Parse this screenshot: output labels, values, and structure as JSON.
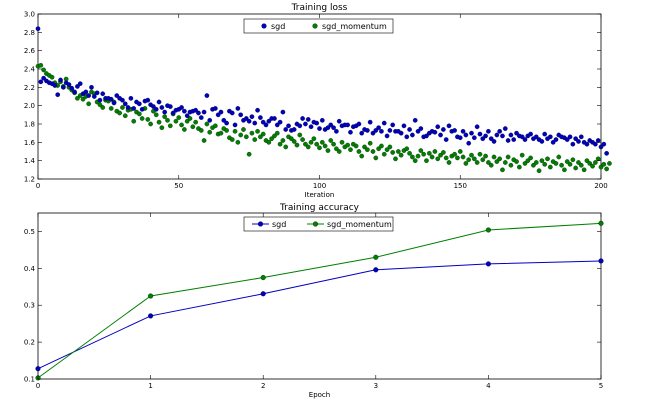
{
  "chart_data": [
    {
      "type": "scatter",
      "title": "Training loss",
      "xlabel": "Iteration",
      "ylabel": "",
      "xlim": [
        0,
        200
      ],
      "ylim": [
        1.2,
        3.0
      ],
      "xticks": [
        "0",
        "50",
        "100",
        "150",
        "200"
      ],
      "yticks": [
        "1.2",
        "1.4",
        "1.6",
        "1.8",
        "2.0",
        "2.2",
        "2.4",
        "2.6",
        "2.8",
        "3.0"
      ],
      "legend": "top-center",
      "grid": false,
      "series": [
        {
          "name": "sgd",
          "color": "#0000bf",
          "y": [
            2.84,
            2.26,
            2.3,
            2.27,
            2.25,
            2.24,
            2.22,
            2.12,
            2.28,
            2.2,
            2.25,
            2.23,
            2.19,
            2.15,
            2.21,
            2.24,
            2.13,
            2.15,
            2.11,
            2.2,
            2.1,
            2.14,
            2.06,
            2.13,
            2.08,
            2.08,
            2.07,
            2.03,
            2.11,
            2.08,
            2.06,
            2.02,
            1.98,
            2.08,
            1.97,
            2.04,
            2.02,
            1.96,
            2.05,
            2.06,
            2.01,
            1.99,
            1.96,
            2.04,
            1.98,
            1.93,
            2.0,
            1.99,
            1.92,
            1.95,
            1.96,
            1.98,
            1.94,
            1.89,
            1.93,
            1.94,
            1.95,
            1.92,
            1.87,
            1.93,
            2.11,
            1.84,
            1.96,
            1.97,
            1.9,
            1.93,
            1.84,
            1.81,
            1.94,
            1.92,
            1.79,
            1.97,
            1.9,
            1.84,
            1.86,
            1.83,
            1.88,
            1.81,
            1.95,
            1.87,
            1.82,
            1.79,
            1.83,
            1.86,
            1.86,
            1.79,
            1.82,
            1.93,
            1.74,
            1.78,
            1.73,
            1.74,
            1.8,
            1.78,
            1.86,
            1.8,
            1.85,
            1.77,
            1.82,
            1.81,
            1.75,
            1.84,
            1.74,
            1.76,
            1.79,
            1.76,
            1.72,
            1.83,
            1.78,
            1.79,
            1.79,
            1.71,
            1.77,
            1.78,
            1.8,
            1.7,
            1.74,
            1.73,
            1.82,
            1.7,
            1.73,
            1.76,
            1.72,
            1.81,
            1.67,
            1.73,
            1.79,
            1.72,
            1.72,
            1.7,
            1.78,
            1.66,
            1.74,
            1.68,
            1.84,
            1.72,
            1.75,
            1.66,
            1.67,
            1.7,
            1.72,
            1.71,
            1.77,
            1.68,
            1.74,
            1.63,
            1.78,
            1.72,
            1.73,
            1.66,
            1.65,
            1.72,
            1.68,
            1.59,
            1.7,
            1.65,
            1.77,
            1.69,
            1.64,
            1.67,
            1.72,
            1.64,
            1.61,
            1.68,
            1.72,
            1.67,
            1.75,
            1.62,
            1.68,
            1.63,
            1.7,
            1.67,
            1.66,
            1.63,
            1.67,
            1.69,
            1.64,
            1.66,
            1.63,
            1.61,
            1.69,
            1.64,
            1.66,
            1.6,
            1.63,
            1.68,
            1.66,
            1.65,
            1.63,
            1.66,
            1.58,
            1.64,
            1.61,
            1.66,
            1.6,
            1.58,
            1.62,
            1.6,
            1.58,
            1.62,
            1.55,
            1.58,
            1.48
          ]
        },
        {
          "name": "sgd_momentum",
          "color": "#007f00",
          "y": [
            2.43,
            2.44,
            2.39,
            2.35,
            2.33,
            2.31,
            2.25,
            2.22,
            2.26,
            2.21,
            2.29,
            2.2,
            2.17,
            2.14,
            2.08,
            2.11,
            2.07,
            2.1,
            2.02,
            2.15,
            2.13,
            2.04,
            2.01,
            1.98,
            2.06,
            2.05,
            1.97,
            2.04,
            1.94,
            1.92,
            1.98,
            1.89,
            1.95,
            1.96,
            1.83,
            1.93,
            1.91,
            1.86,
            1.97,
            1.85,
            1.8,
            1.94,
            1.9,
            1.82,
            1.76,
            1.88,
            1.84,
            1.78,
            1.91,
            1.83,
            1.87,
            1.79,
            1.74,
            1.83,
            1.86,
            1.77,
            1.82,
            1.75,
            1.73,
            1.62,
            1.8,
            1.71,
            1.76,
            1.78,
            1.69,
            1.7,
            1.75,
            1.73,
            1.65,
            1.63,
            1.72,
            1.6,
            1.68,
            1.74,
            1.66,
            1.47,
            1.7,
            1.63,
            1.72,
            1.66,
            1.69,
            1.62,
            1.6,
            1.64,
            1.67,
            1.7,
            1.58,
            1.62,
            1.55,
            1.66,
            1.64,
            1.61,
            1.57,
            1.68,
            1.63,
            1.58,
            1.55,
            1.6,
            1.64,
            1.58,
            1.54,
            1.6,
            1.56,
            1.51,
            1.62,
            1.58,
            1.53,
            1.5,
            1.6,
            1.55,
            1.57,
            1.52,
            1.58,
            1.56,
            1.5,
            1.45,
            1.55,
            1.52,
            1.59,
            1.5,
            1.43,
            1.53,
            1.56,
            1.47,
            1.52,
            1.55,
            1.49,
            1.42,
            1.5,
            1.46,
            1.51,
            1.53,
            1.48,
            1.44,
            1.4,
            1.45,
            1.51,
            1.47,
            1.4,
            1.48,
            1.44,
            1.5,
            1.42,
            1.46,
            1.49,
            1.43,
            1.38,
            1.45,
            1.47,
            1.43,
            1.5,
            1.44,
            1.37,
            1.41,
            1.46,
            1.42,
            1.38,
            1.47,
            1.41,
            1.45,
            1.38,
            1.35,
            1.44,
            1.39,
            1.42,
            1.3,
            1.38,
            1.44,
            1.35,
            1.41,
            1.39,
            1.33,
            1.46,
            1.37,
            1.4,
            1.43,
            1.35,
            1.38,
            1.29,
            1.4,
            1.36,
            1.42,
            1.33,
            1.39,
            1.37,
            1.44,
            1.35,
            1.3,
            1.39,
            1.36,
            1.41,
            1.32,
            1.38,
            1.35,
            1.3,
            1.4,
            1.37,
            1.34,
            1.38,
            1.42,
            1.33,
            1.36,
            1.31,
            1.37
          ]
        }
      ]
    },
    {
      "type": "line",
      "title": "Training accuracy",
      "xlabel": "Epoch",
      "ylabel": "",
      "xlim": [
        0,
        5
      ],
      "ylim": [
        0.1,
        0.55
      ],
      "xticks": [
        "0",
        "1",
        "2",
        "3",
        "4",
        "5"
      ],
      "yticks": [
        "0.1",
        "0.2",
        "0.3",
        "0.4",
        "0.5"
      ],
      "legend": "top-center",
      "grid": false,
      "x": [
        0,
        1,
        2,
        3,
        4,
        5
      ],
      "series": [
        {
          "name": "sgd",
          "color": "#0000bf",
          "values": [
            0.128,
            0.271,
            0.331,
            0.396,
            0.412,
            0.42
          ]
        },
        {
          "name": "sgd_momentum",
          "color": "#007f00",
          "values": [
            0.103,
            0.325,
            0.375,
            0.43,
            0.504,
            0.522
          ]
        }
      ]
    }
  ]
}
